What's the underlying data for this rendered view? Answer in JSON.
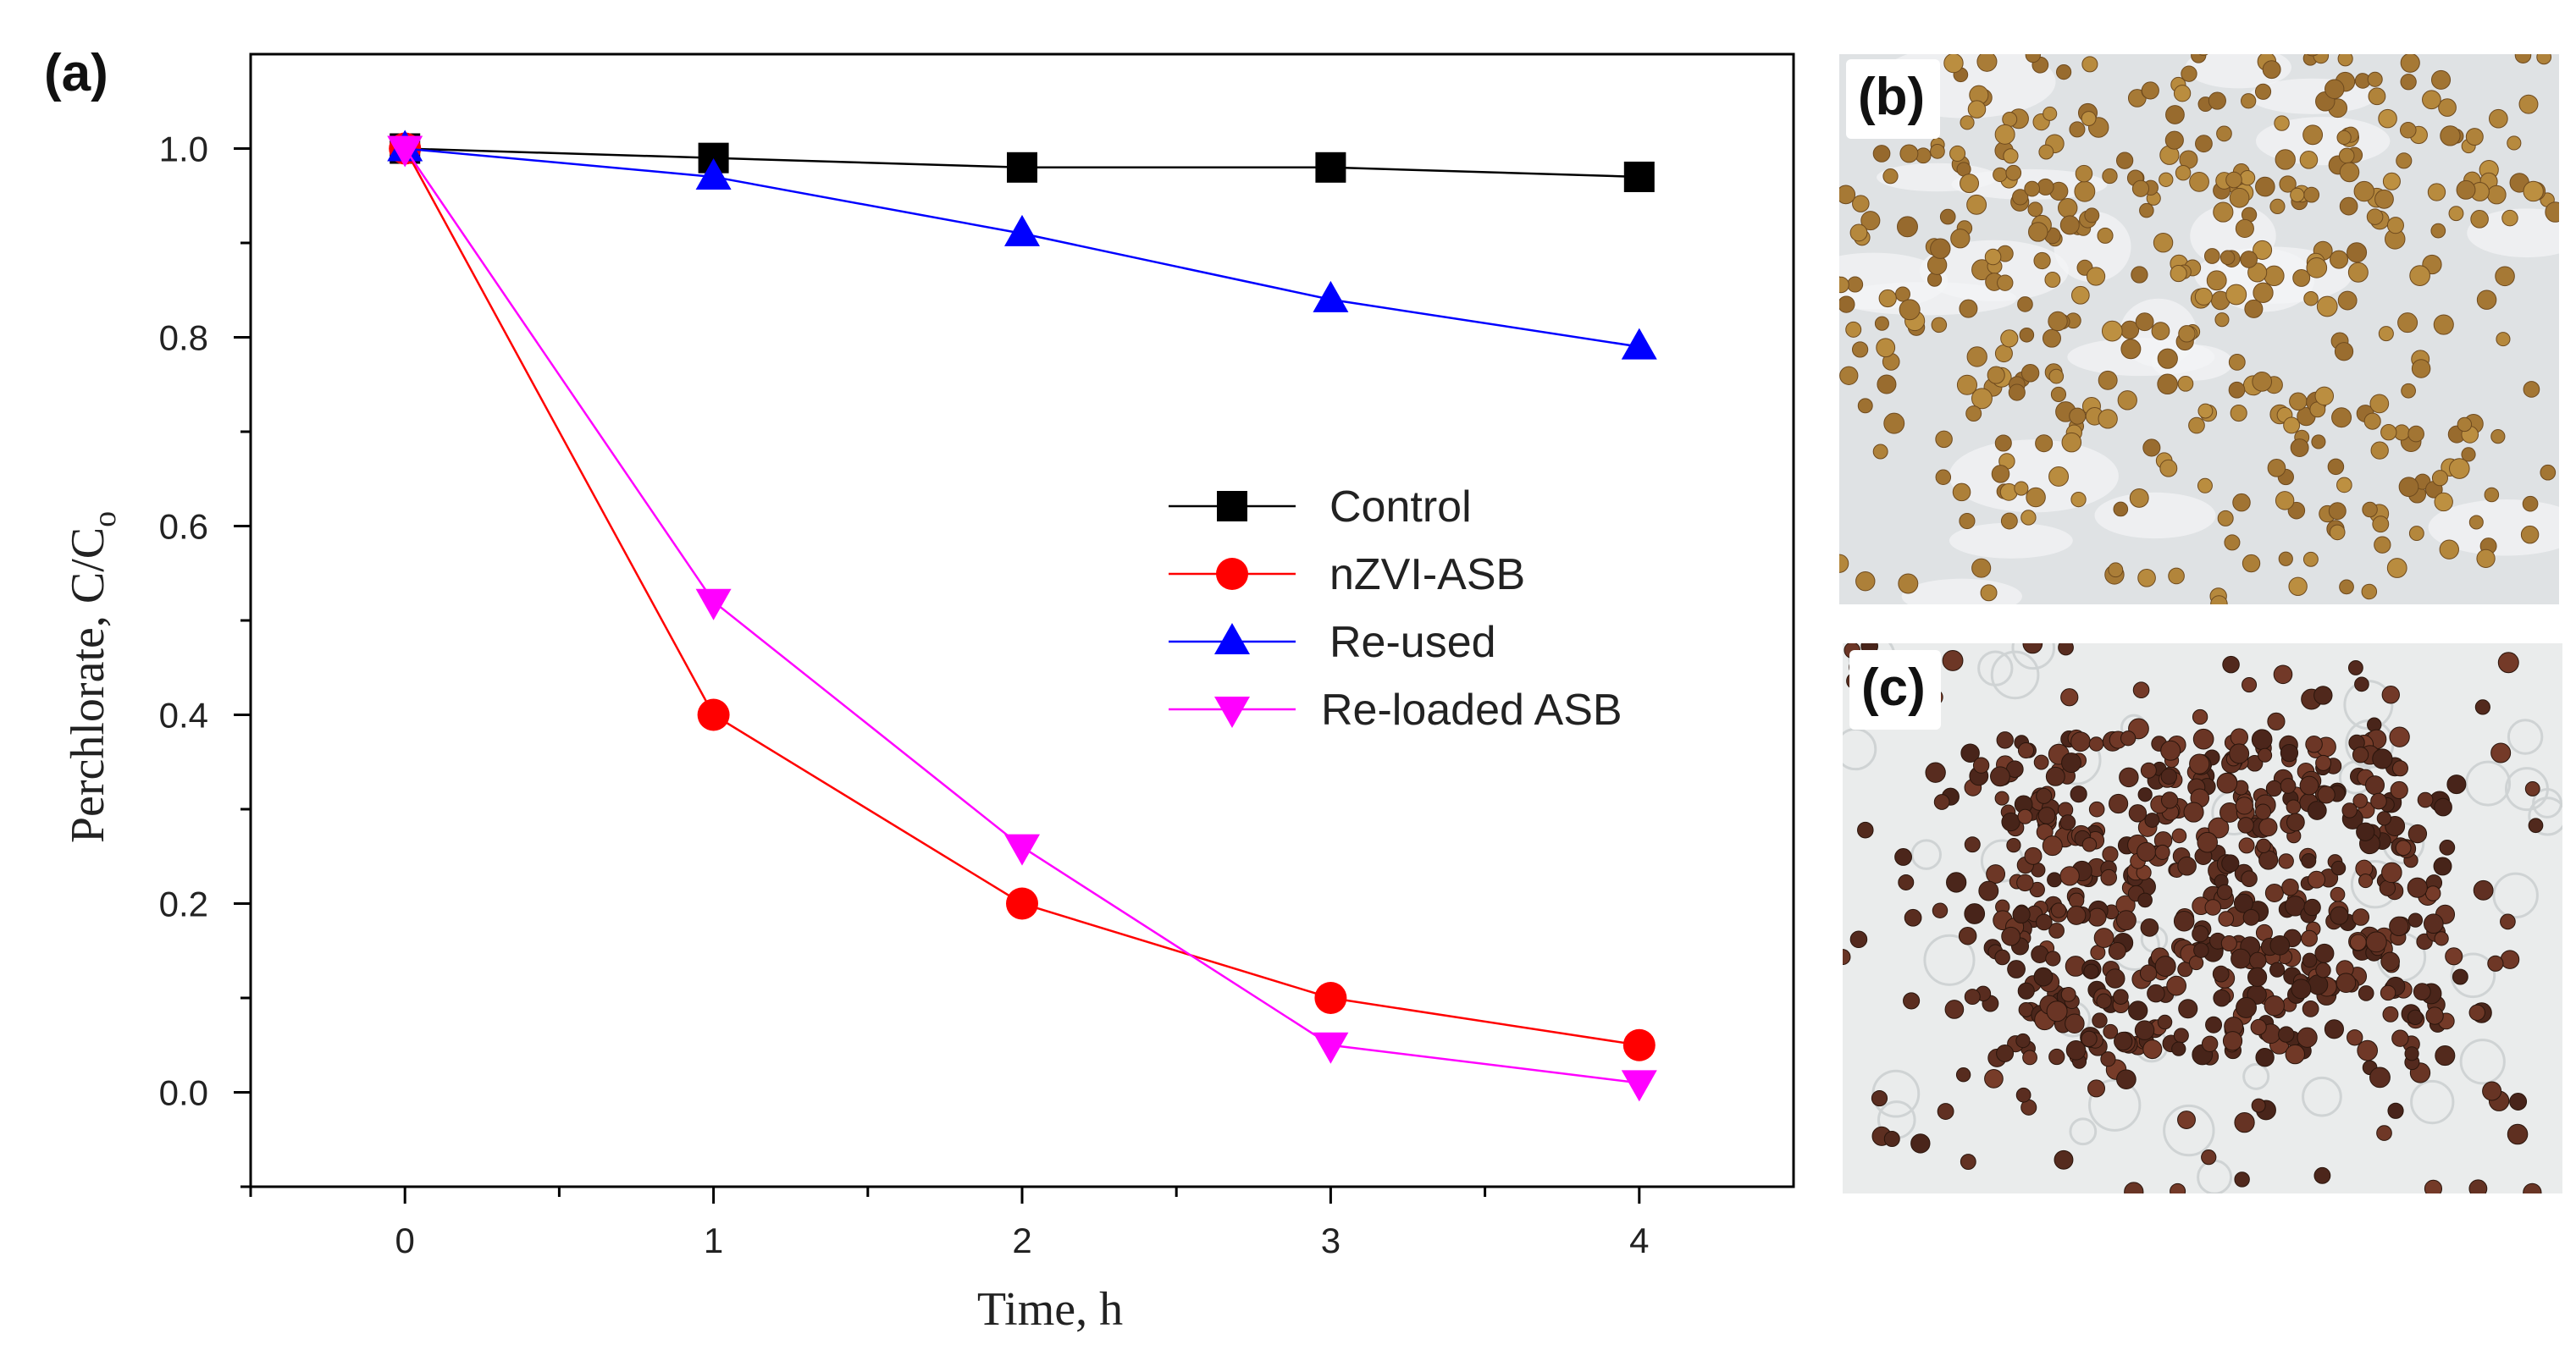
{
  "panels": {
    "a": {
      "label": "(a)"
    },
    "b": {
      "label": "(b)",
      "description_color": "#a87a3a"
    },
    "c": {
      "label": "(c)",
      "description_color": "#4a2a1c"
    }
  },
  "chart_data": {
    "type": "line",
    "xlabel": "Time, h",
    "ylabel": "Perchlorate, C/C",
    "ylabel_subscript": "o",
    "xlim": [
      -0.5,
      4.5
    ],
    "ylim": [
      -0.1,
      1.1
    ],
    "x_ticks": [
      0,
      1,
      2,
      3,
      4
    ],
    "x_tick_labels": [
      "0",
      "1",
      "2",
      "3",
      "4"
    ],
    "y_ticks": [
      0.0,
      0.2,
      0.4,
      0.6,
      0.8,
      1.0
    ],
    "y_tick_labels": [
      "0.0",
      "0.2",
      "0.4",
      "0.6",
      "0.8",
      "1.0"
    ],
    "legend_position": "center-right",
    "series": [
      {
        "name": "Control",
        "color": "#000000",
        "marker": "square",
        "x": [
          0,
          1,
          2,
          3,
          4
        ],
        "values": [
          1.0,
          0.99,
          0.98,
          0.98,
          0.97
        ]
      },
      {
        "name": "nZVI-ASB",
        "color": "#ff0000",
        "marker": "circle",
        "x": [
          0,
          1,
          2,
          3,
          4
        ],
        "values": [
          1.0,
          0.4,
          0.2,
          0.1,
          0.05
        ]
      },
      {
        "name": "Re-used",
        "color": "#0000ff",
        "marker": "triangle-up",
        "x": [
          0,
          1,
          2,
          3,
          4
        ],
        "values": [
          1.0,
          0.97,
          0.91,
          0.84,
          0.79
        ]
      },
      {
        "name": "Re-loaded ASB",
        "color": "#ff00ff",
        "marker": "triangle-down",
        "x": [
          0,
          1,
          2,
          3,
          4
        ],
        "values": [
          1.0,
          0.52,
          0.26,
          0.05,
          0.01
        ]
      }
    ]
  }
}
